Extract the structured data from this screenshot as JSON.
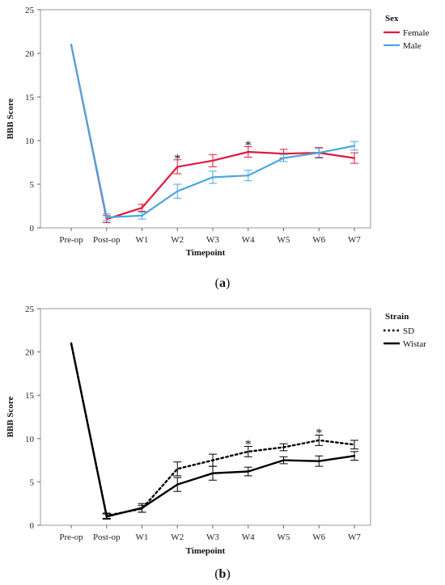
{
  "chart_data": [
    {
      "type": "line",
      "panel_label": "a",
      "xlabel": "Timepoint",
      "ylabel": "BBB Score",
      "categories": [
        "Pre-op",
        "Post-op",
        "W1",
        "W2",
        "W3",
        "W4",
        "W5",
        "W6",
        "W7"
      ],
      "ylim": [
        0,
        25
      ],
      "yticks": [
        0,
        5,
        10,
        15,
        20,
        25
      ],
      "grid": false,
      "legend": {
        "title": "Sex",
        "placement": "outside-right"
      },
      "series": [
        {
          "name": "Female",
          "color": "#e0193e",
          "dash": "solid",
          "values": [
            21,
            1.0,
            2.3,
            7.0,
            7.7,
            8.7,
            8.5,
            8.6,
            8.0
          ],
          "errors": [
            0,
            0.4,
            0.4,
            0.8,
            0.7,
            0.6,
            0.5,
            0.6,
            0.6
          ]
        },
        {
          "name": "Male",
          "color": "#4aa6e0",
          "dash": "solid",
          "values": [
            21,
            1.2,
            1.4,
            4.2,
            5.8,
            6.0,
            8.0,
            8.6,
            9.4
          ],
          "errors": [
            0,
            0.4,
            0.4,
            0.8,
            0.7,
            0.6,
            0.4,
            0.5,
            0.5
          ]
        }
      ],
      "annotations": [
        {
          "text": "*",
          "x": "W2",
          "y": 8.2
        },
        {
          "text": "*",
          "x": "W4",
          "y": 9.7
        }
      ]
    },
    {
      "type": "line",
      "panel_label": "b",
      "xlabel": "Timepoint",
      "ylabel": "BBB Score",
      "categories": [
        "Pre-op",
        "Post-op",
        "W1",
        "W2",
        "W3",
        "W4",
        "W5",
        "W6",
        "W7"
      ],
      "ylim": [
        0,
        25
      ],
      "yticks": [
        0,
        5,
        10,
        15,
        20,
        25
      ],
      "grid": false,
      "legend": {
        "title": "Strain",
        "placement": "outside-right"
      },
      "series": [
        {
          "name": "SD",
          "color": "#000000",
          "dash": "dotted",
          "values": [
            21,
            1.1,
            1.9,
            6.5,
            7.5,
            8.5,
            9.0,
            9.8,
            9.3
          ],
          "errors": [
            0,
            0.3,
            0.4,
            0.8,
            0.7,
            0.6,
            0.4,
            0.6,
            0.5
          ]
        },
        {
          "name": "Wistar",
          "color": "#000000",
          "dash": "solid",
          "values": [
            21,
            1.0,
            2.0,
            4.7,
            6.0,
            6.2,
            7.5,
            7.4,
            8.0
          ],
          "errors": [
            0,
            0.3,
            0.5,
            0.8,
            0.8,
            0.5,
            0.4,
            0.6,
            0.5
          ]
        }
      ],
      "annotations": [
        {
          "text": "*",
          "x": "W4",
          "y": 9.6
        },
        {
          "text": "*",
          "x": "W6",
          "y": 10.9
        }
      ]
    }
  ]
}
